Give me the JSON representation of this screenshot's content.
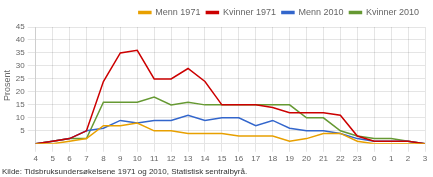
{
  "chart_data": {
    "type": "line",
    "categories": [
      "4",
      "5",
      "6",
      "7",
      "8",
      "9",
      "10",
      "11",
      "12",
      "13",
      "14",
      "15",
      "16",
      "17",
      "18",
      "19",
      "20",
      "21",
      "22",
      "23",
      "0",
      "1",
      "2",
      "3"
    ],
    "series": [
      {
        "name": "Menn 1971",
        "color": "#E8A000",
        "values": [
          0,
          0,
          1,
          2,
          7,
          7,
          8,
          5,
          5,
          4,
          4,
          4,
          3,
          3,
          3,
          1,
          2,
          4,
          4,
          1,
          0,
          0,
          0,
          0
        ]
      },
      {
        "name": "Kvinner 1971",
        "color": "#CC0000",
        "values": [
          0,
          1,
          2,
          5,
          24,
          35,
          36,
          25,
          25,
          29,
          24,
          15,
          15,
          15,
          14,
          12,
          12,
          12,
          11,
          3,
          1,
          1,
          1,
          0
        ]
      },
      {
        "name": "Menn 2010",
        "color": "#3366CC",
        "values": [
          0,
          1,
          2,
          5,
          6,
          9,
          8,
          9,
          9,
          11,
          9,
          10,
          10,
          7,
          9,
          6,
          5,
          5,
          4,
          2,
          1,
          1,
          1,
          0
        ]
      },
      {
        "name": "Kvinner 2010",
        "color": "#669933",
        "values": [
          0,
          1,
          2,
          2,
          16,
          16,
          16,
          18,
          15,
          16,
          15,
          15,
          15,
          15,
          15,
          15,
          10,
          10,
          5,
          3,
          2,
          2,
          1,
          0
        ]
      }
    ],
    "ylabel": "Prosent",
    "ylim": [
      0,
      45
    ],
    "yticks": [
      5,
      10,
      15,
      20,
      25,
      30,
      35,
      40,
      45
    ],
    "grid": true,
    "legend": "upper right",
    "footnote": "Kilde: Tidsbruksundersøkelsene 1971 og 2010, Statistisk sentralbyrå."
  }
}
